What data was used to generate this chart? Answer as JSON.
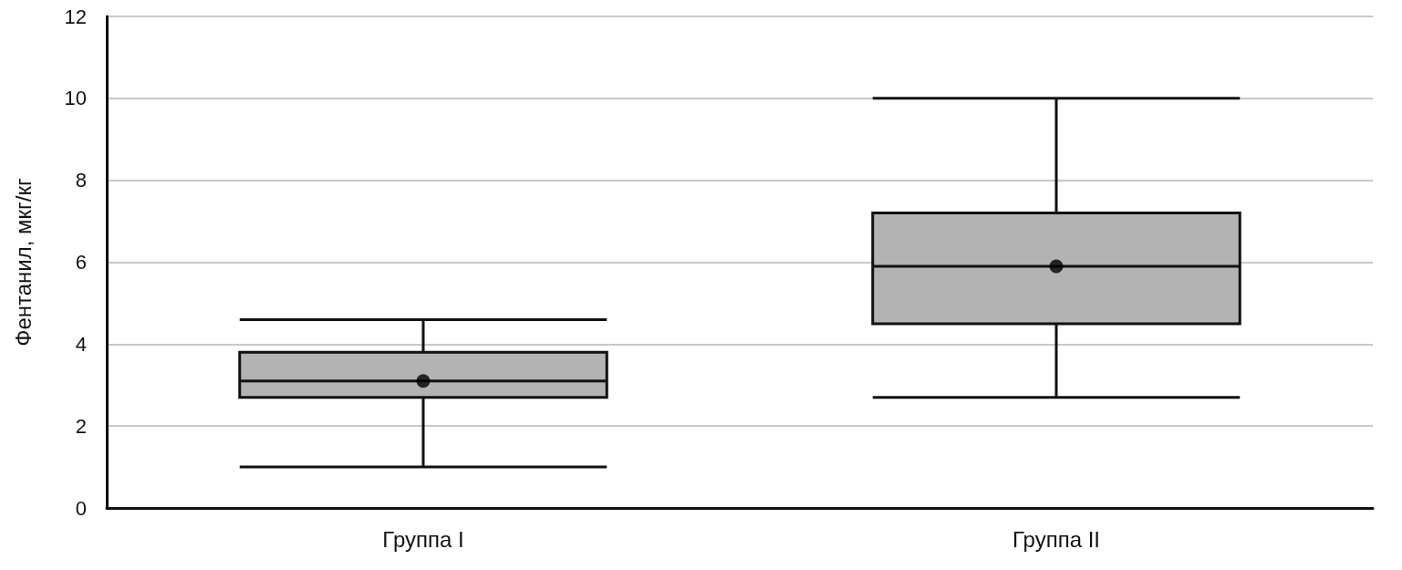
{
  "chart_data": {
    "type": "box",
    "ylabel": "Фентанил, мкг/кг",
    "categories": [
      "Группа I",
      "Группа II"
    ],
    "boxes": [
      {
        "low": 1.0,
        "q1": 2.7,
        "median": 3.1,
        "q3": 3.8,
        "high": 4.6,
        "mean": 3.1
      },
      {
        "low": 2.7,
        "q1": 4.5,
        "median": 5.9,
        "q3": 7.2,
        "high": 10.0,
        "mean": 5.9
      }
    ],
    "color": "#b3b3b3",
    "ylim": [
      0,
      12
    ],
    "yticks": [
      0,
      2,
      4,
      6,
      8,
      10,
      12
    ],
    "grid": "y",
    "marker": "circle"
  }
}
